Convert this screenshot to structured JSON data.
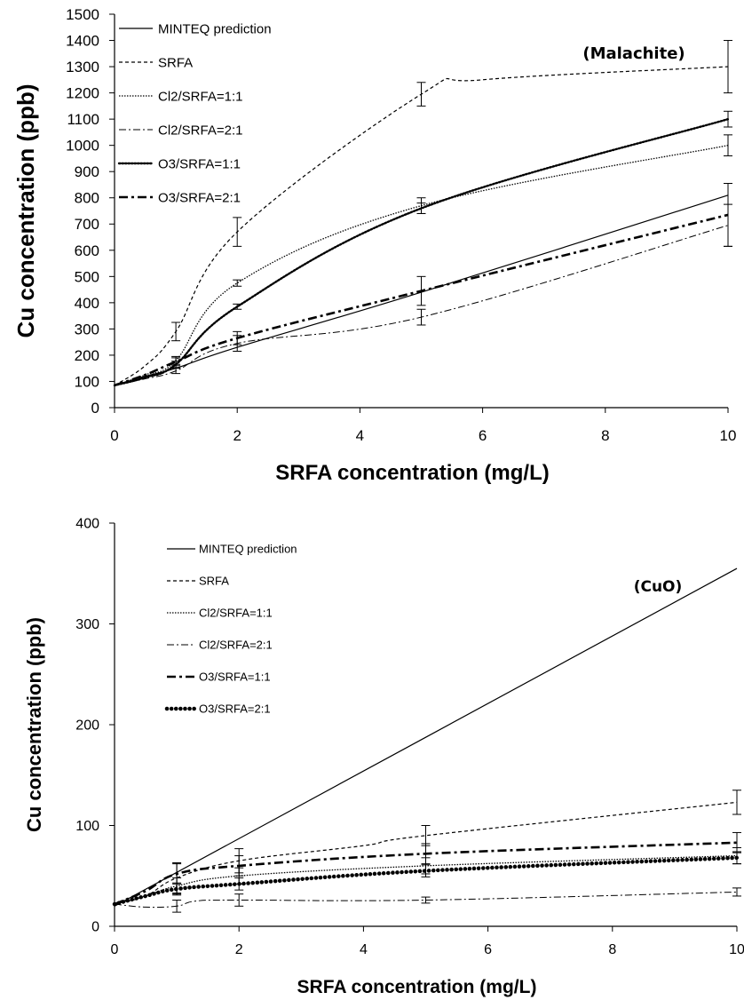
{
  "chart_data": [
    {
      "type": "line",
      "title": "(Malachite)",
      "xlabel": "SRFA concentration (mg/L)",
      "ylabel": "Cu concentration (ppb)",
      "xlim": [
        0,
        10
      ],
      "ylim": [
        0,
        1500
      ],
      "xticks": [
        "0",
        "2",
        "4",
        "6",
        "8",
        "10"
      ],
      "yticks": [
        "0",
        "100",
        "200",
        "300",
        "400",
        "500",
        "600",
        "700",
        "800",
        "900",
        "1000",
        "1100",
        "1200",
        "1300",
        "1400",
        "1500"
      ],
      "grid": false,
      "legend_position": "top-left",
      "series": [
        {
          "name": "MINTEQ prediction",
          "style": "solid",
          "x": [
            0,
            0.5,
            1,
            2,
            5,
            10
          ],
          "y": [
            85,
            120,
            150,
            230,
            440,
            810
          ],
          "err": [
            0,
            0,
            0,
            0,
            0,
            0
          ]
        },
        {
          "name": "SRFA",
          "style": "dashed",
          "x": [
            0,
            0.5,
            1,
            2,
            5,
            6,
            10
          ],
          "y": [
            85,
            160,
            290,
            670,
            1195,
            1250,
            1300
          ],
          "err": [
            0,
            0,
            35,
            55,
            45,
            0,
            100
          ]
        },
        {
          "name": "Cl2/SRFA=1:1",
          "style": "short-dotted",
          "x": [
            0,
            0.5,
            1,
            2,
            5,
            10
          ],
          "y": [
            85,
            125,
            180,
            475,
            770,
            1000
          ],
          "err": [
            0,
            0,
            15,
            12,
            30,
            40
          ]
        },
        {
          "name": "Cl2/SRFA=2:1",
          "style": "dash-dot-thin",
          "x": [
            0,
            0.5,
            1,
            2,
            5,
            10
          ],
          "y": [
            85,
            110,
            140,
            245,
            345,
            695
          ],
          "err": [
            0,
            0,
            10,
            30,
            30,
            80
          ]
        },
        {
          "name": "O3/SRFA=1:1",
          "style": "dotted",
          "x": [
            0,
            0.5,
            1,
            2,
            5,
            10
          ],
          "y": [
            85,
            115,
            165,
            385,
            760,
            1100
          ],
          "err": [
            0,
            0,
            12,
            10,
            20,
            30
          ]
        },
        {
          "name": "O3/SRFA=2:1",
          "style": "dash-dot-thick",
          "x": [
            0,
            0.5,
            1,
            2,
            5,
            10
          ],
          "y": [
            85,
            125,
            175,
            265,
            445,
            735
          ],
          "err": [
            0,
            0,
            15,
            25,
            55,
            120
          ]
        }
      ]
    },
    {
      "type": "line",
      "title": "(CuO)",
      "xlabel": "SRFA concentration (mg/L)",
      "ylabel": "Cu concentration (ppb)",
      "xlim": [
        0,
        10
      ],
      "ylim": [
        0,
        400
      ],
      "xticks": [
        "0",
        "2",
        "4",
        "6",
        "8",
        "10"
      ],
      "yticks": [
        "0",
        "100",
        "200",
        "300",
        "400"
      ],
      "grid": false,
      "legend_position": "top-left",
      "series": [
        {
          "name": "MINTEQ prediction",
          "style": "solid",
          "x": [
            0,
            10
          ],
          "y": [
            20,
            355
          ],
          "err": [
            0,
            0
          ]
        },
        {
          "name": "SRFA",
          "style": "dashed",
          "x": [
            0,
            0.5,
            1,
            2,
            4,
            5,
            10
          ],
          "y": [
            22,
            30,
            48,
            65,
            80,
            90,
            123
          ],
          "err": [
            0,
            0,
            15,
            12,
            0,
            10,
            12
          ]
        },
        {
          "name": "Cl2/SRFA=1:1",
          "style": "short-dotted",
          "x": [
            0,
            0.5,
            1,
            2,
            5,
            10
          ],
          "y": [
            22,
            30,
            40,
            50,
            60,
            70
          ],
          "err": [
            0,
            0,
            8,
            8,
            8,
            8
          ]
        },
        {
          "name": "Cl2/SRFA=2:1",
          "style": "dash-dot-thin",
          "x": [
            0,
            0.5,
            1,
            1.3,
            2,
            5,
            10
          ],
          "y": [
            22,
            19,
            20,
            25,
            26,
            26,
            34
          ],
          "err": [
            0,
            0,
            6,
            0,
            6,
            3,
            4
          ]
        },
        {
          "name": "O3/SRFA=1:1",
          "style": "dash-dot-thick",
          "x": [
            0,
            0.5,
            1,
            2,
            5,
            10
          ],
          "y": [
            22,
            35,
            52,
            60,
            72,
            83
          ],
          "err": [
            0,
            0,
            10,
            10,
            10,
            10
          ]
        },
        {
          "name": "O3/SRFA=2:1",
          "style": "dotted-heavy",
          "x": [
            0,
            0.5,
            1,
            2,
            5,
            10
          ],
          "y": [
            22,
            30,
            37,
            42,
            55,
            68
          ],
          "err": [
            0,
            0,
            6,
            6,
            6,
            6
          ]
        }
      ]
    }
  ]
}
